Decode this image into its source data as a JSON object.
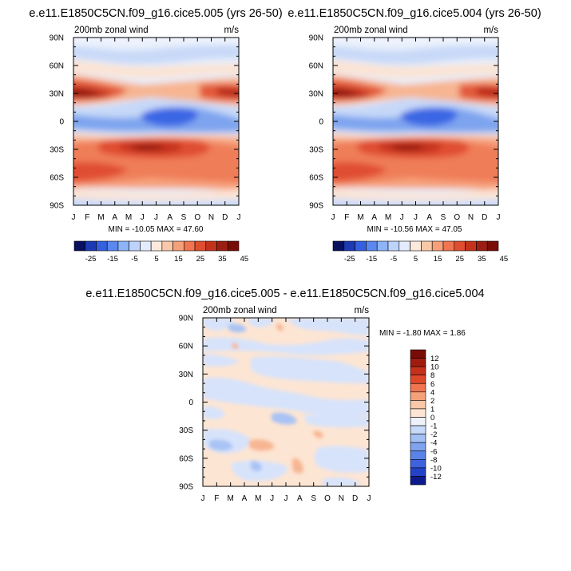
{
  "months": [
    "J",
    "F",
    "M",
    "A",
    "M",
    "J",
    "J",
    "A",
    "S",
    "O",
    "N",
    "D",
    "J"
  ],
  "lat_labels": [
    "90N",
    "60N",
    "30N",
    "0",
    "30S",
    "60S",
    "90S"
  ],
  "lat_values": [
    90,
    60,
    30,
    0,
    -30,
    -60,
    -90
  ],
  "panels": [
    {
      "title": "e.e11.E1850C5CN.f09_g16.cice5.005 (yrs 26-50)",
      "variable": "200mb zonal wind",
      "units": "m/s",
      "minmax": "MIN = -10.05 MAX =  47.60",
      "min": -10.05,
      "max": 47.6
    },
    {
      "title": "e.e11.E1850C5CN.f09_g16.cice5.004 (yrs 26-50)",
      "variable": "200mb zonal wind",
      "units": "m/s",
      "minmax": "MIN = -10.56 MAX =  47.05",
      "min": -10.56,
      "max": 47.05
    },
    {
      "title": "e.e11.E1850C5CN.f09_g16.cice5.005 - e.e11.E1850C5CN.f09_g16.cice5.004",
      "variable": "200mb zonal wind",
      "units": "m/s",
      "minmax": "MIN = -1.80 MAX =   1.86",
      "min": -1.8,
      "max": 1.86
    }
  ],
  "colorbar_main": {
    "labels": [
      "-25",
      "-15",
      "-5",
      "5",
      "15",
      "25",
      "35",
      "45"
    ],
    "colors": [
      "#08105f",
      "#1c3ab4",
      "#3561e0",
      "#5b88ef",
      "#8eb3f7",
      "#bdd3fb",
      "#e3ecfc",
      "#fbe9dc",
      "#f9c8a8",
      "#f6a07a",
      "#f07550",
      "#e04e30",
      "#c4321c",
      "#9c1e12",
      "#7a0c08"
    ]
  },
  "colorbar_diff": {
    "labels": [
      "12",
      "10",
      "8",
      "6",
      "4",
      "2",
      "1",
      "0",
      "-1",
      "-2",
      "-4",
      "-6",
      "-8",
      "-10",
      "-12"
    ],
    "colors": [
      "#7a0c08",
      "#a01c0e",
      "#c4321c",
      "#e0482a",
      "#f07550",
      "#f6a07a",
      "#f9c8a8",
      "#fde5d3",
      "#eef2fb",
      "#c8dafa",
      "#a3c0f5",
      "#7fa3ef",
      "#5b82e6",
      "#3d62dc",
      "#2342c8",
      "#0c1a8c"
    ]
  },
  "chart_data": [
    {
      "type": "heatmap",
      "title": "e.e11.E1850C5CN.f09_g16.cice5.005 (yrs 26-50)",
      "subtitle": "200mb zonal wind",
      "units": "m/s",
      "x": [
        "J",
        "F",
        "M",
        "A",
        "M",
        "J",
        "J",
        "A",
        "S",
        "O",
        "N",
        "D",
        "J"
      ],
      "y": [
        "90N",
        "60N",
        "30N",
        "0",
        "30S",
        "60S",
        "90S"
      ],
      "min": -10.05,
      "max": 47.6,
      "colorbar_levels": [
        -25,
        -15,
        -5,
        5,
        15,
        25,
        35,
        45
      ]
    },
    {
      "type": "heatmap",
      "title": "e.e11.E1850C5CN.f09_g16.cice5.004 (yrs 26-50)",
      "subtitle": "200mb zonal wind",
      "units": "m/s",
      "x": [
        "J",
        "F",
        "M",
        "A",
        "M",
        "J",
        "J",
        "A",
        "S",
        "O",
        "N",
        "D",
        "J"
      ],
      "y": [
        "90N",
        "60N",
        "30N",
        "0",
        "30S",
        "60S",
        "90S"
      ],
      "min": -10.56,
      "max": 47.05,
      "colorbar_levels": [
        -25,
        -15,
        -5,
        5,
        15,
        25,
        35,
        45
      ]
    },
    {
      "type": "heatmap",
      "title": "e.e11.E1850C5CN.f09_g16.cice5.005 - e.e11.E1850C5CN.f09_g16.cice5.004",
      "subtitle": "200mb zonal wind",
      "units": "m/s",
      "x": [
        "J",
        "F",
        "M",
        "A",
        "M",
        "J",
        "J",
        "A",
        "S",
        "O",
        "N",
        "D",
        "J"
      ],
      "y": [
        "90N",
        "60N",
        "30N",
        "0",
        "30S",
        "60S",
        "90S"
      ],
      "min": -1.8,
      "max": 1.86,
      "colorbar_levels": [
        12,
        10,
        8,
        6,
        4,
        2,
        1,
        0,
        -1,
        -2,
        -4,
        -6,
        -8,
        -10,
        -12
      ]
    }
  ]
}
